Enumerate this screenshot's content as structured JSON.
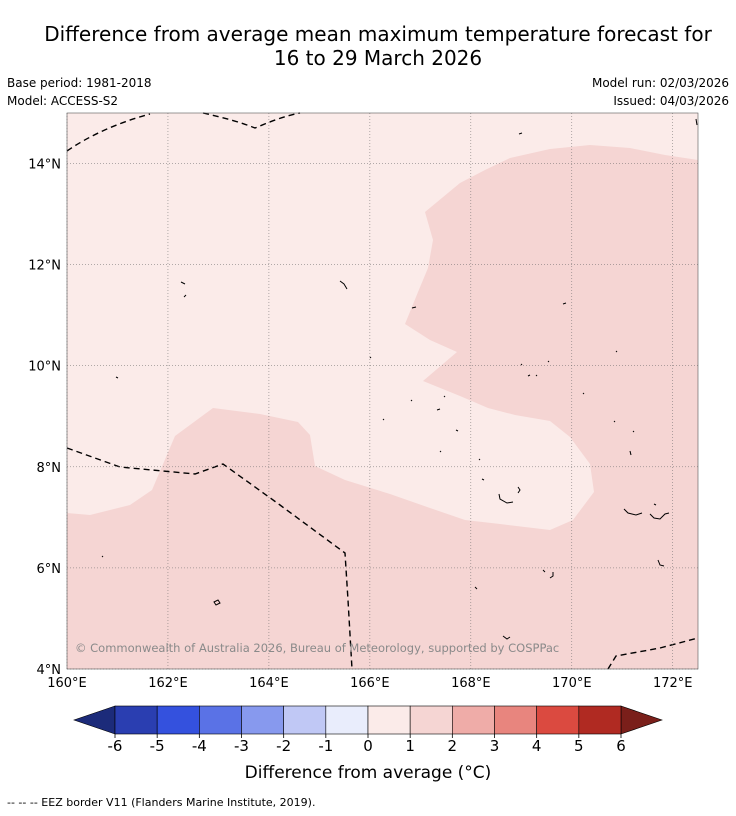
{
  "header": {
    "title_line1": "Difference from average mean maximum temperature forecast for",
    "title_line2": "16 to 29 March 2026",
    "base_period": "Base period: 1981-2018",
    "model": "Model: ACCESS-S2",
    "model_run": "Model run: 02/03/2026",
    "issued": "Issued: 04/03/2026"
  },
  "map": {
    "lon_range": [
      160,
      172.5
    ],
    "lat_range": [
      4,
      15
    ],
    "lon_ticks": [
      160,
      162,
      164,
      166,
      168,
      170,
      172
    ],
    "lon_tick_labels": [
      "160°E",
      "162°E",
      "164°E",
      "166°E",
      "168°E",
      "170°E",
      "172°E"
    ],
    "lat_ticks": [
      14,
      12,
      10,
      8,
      6,
      4
    ],
    "lat_tick_labels": [
      "14°N",
      "12°N",
      "10°N",
      "8°N",
      "6°N",
      "4°N"
    ],
    "copyright": "© Commonwealth of Australia 2026, Bureau of Meteorology, supported by COSPPac",
    "background_class_color": "#fbebe9",
    "warm_class_color": "#f5d5d3"
  },
  "colorbar": {
    "ticks": [
      "-6",
      "-5",
      "-4",
      "-3",
      "-2",
      "-1",
      "0",
      "1",
      "2",
      "3",
      "4",
      "5",
      "6"
    ],
    "colors": [
      "#2a3eb1",
      "#3451de",
      "#5a72e6",
      "#8799ee",
      "#c0c8f5",
      "#e9edfc",
      "#fbebe9",
      "#f5d5d3",
      "#efaca8",
      "#e8857e",
      "#db4a40",
      "#b02a22"
    ],
    "low_extend_color": "#1c2b7a",
    "high_extend_color": "#7a1f1a",
    "label": "Difference from average (°C)"
  },
  "footnote": "--  --  -- EEZ border V11 (Flanders Marine Institute, 2019)."
}
